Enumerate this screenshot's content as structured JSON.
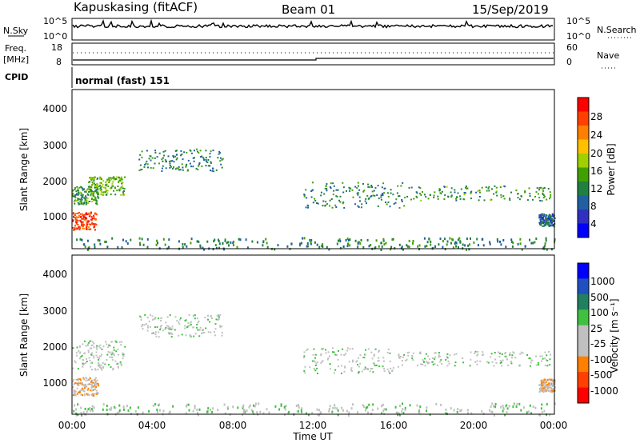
{
  "header": {
    "station": "Kapuskasing (fitACF)",
    "beam": "Beam 01",
    "date": "15/Sep/2019"
  },
  "top_panels": {
    "nsky_label": "N.Sky",
    "nsky_ticks": [
      "10^5",
      "10^0"
    ],
    "nsearch_label": "N.Search",
    "nsearch_ticks": [
      "10^5",
      "10^0"
    ],
    "freq_label_line1": "Freq.",
    "freq_label_line2": "[MHz]",
    "freq_ticks": [
      "18",
      "8"
    ],
    "nave_label": "Nave",
    "nave_ticks": [
      "60",
      "0"
    ],
    "cpid_label": "CPID",
    "cpid_value": "normal (fast) 151"
  },
  "x_axis": {
    "label": "Time UT",
    "ticks": [
      "00:00",
      "04:00",
      "08:00",
      "12:00",
      "16:00",
      "20:00",
      "00:00"
    ]
  },
  "power_panel": {
    "ylabel": "Slant Range [km]",
    "yticks": [
      "4000",
      "3000",
      "2000",
      "1000"
    ],
    "colorbar_label": "Power [dB]",
    "colorbar_ticks": [
      "28",
      "24",
      "20",
      "16",
      "12",
      "8",
      "4"
    ],
    "colors": [
      "#ff0000",
      "#ff4000",
      "#ff8000",
      "#ffc000",
      "#a0d000",
      "#40a000",
      "#208040",
      "#2060a0",
      "#3030c0",
      "#0000ff"
    ]
  },
  "velocity_panel": {
    "ylabel": "Slant Range [km]",
    "yticks": [
      "4000",
      "3000",
      "2000",
      "1000"
    ],
    "colorbar_label": "Velocity [m s⁻¹]",
    "colorbar_ticks": [
      "1000",
      "500",
      "100",
      "25",
      "-25",
      "-100",
      "-500",
      "-1000"
    ],
    "colors": [
      "#0000ff",
      "#2050c0",
      "#208060",
      "#40c040",
      "#c0c0c0",
      "#c0c0c0",
      "#ff8000",
      "#ff4000",
      "#ff0000"
    ]
  },
  "chart_data": [
    {
      "type": "heatmap",
      "title": "Power",
      "xlabel": "Time UT",
      "ylabel": "Slant Range [km]",
      "xlim_hours": [
        0,
        24
      ],
      "ylim": [
        180,
        4500
      ],
      "colorbar": "Power [dB]",
      "clim": [
        0,
        30
      ],
      "regions": [
        {
          "t": [
            0.0,
            1.2
          ],
          "r": [
            700,
            1200
          ],
          "value": 26
        },
        {
          "t": [
            0.0,
            1.3
          ],
          "r": [
            1400,
            1900
          ],
          "value": 12
        },
        {
          "t": [
            0.8,
            2.6
          ],
          "r": [
            1650,
            2150
          ],
          "value": 14
        },
        {
          "t": [
            3.3,
            7.5
          ],
          "r": [
            2300,
            2900
          ],
          "value": 10
        },
        {
          "t": [
            11.5,
            16.5
          ],
          "r": [
            1300,
            2000
          ],
          "value": 10
        },
        {
          "t": [
            16.5,
            23.8
          ],
          "r": [
            1500,
            1900
          ],
          "value": 12
        },
        {
          "t": [
            23.2,
            24.0
          ],
          "r": [
            800,
            1150
          ],
          "value": 8
        },
        {
          "t": [
            0.0,
            24.0
          ],
          "r": [
            180,
            500
          ],
          "value": 10
        }
      ]
    },
    {
      "type": "heatmap",
      "title": "Velocity",
      "xlabel": "Time UT",
      "ylabel": "Slant Range [km]",
      "xlim_hours": [
        0,
        24
      ],
      "ylim": [
        180,
        4500
      ],
      "colorbar": "Velocity [m s⁻¹]",
      "clim": [
        -1000,
        1000
      ],
      "regions": [
        {
          "t": [
            0.0,
            1.3
          ],
          "r": [
            700,
            1200
          ],
          "value": -250
        },
        {
          "t": [
            0.0,
            2.6
          ],
          "r": [
            1400,
            2200
          ],
          "value": 0
        },
        {
          "t": [
            3.3,
            7.5
          ],
          "r": [
            2300,
            2900
          ],
          "value": 0
        },
        {
          "t": [
            11.5,
            16.5
          ],
          "r": [
            1300,
            2000
          ],
          "value": 0
        },
        {
          "t": [
            16.5,
            23.8
          ],
          "r": [
            1500,
            1900
          ],
          "value": 0
        },
        {
          "t": [
            23.2,
            24.0
          ],
          "r": [
            800,
            1150
          ],
          "value": -200
        },
        {
          "t": [
            0.0,
            24.0
          ],
          "r": [
            180,
            500
          ],
          "value": 50
        }
      ]
    }
  ]
}
